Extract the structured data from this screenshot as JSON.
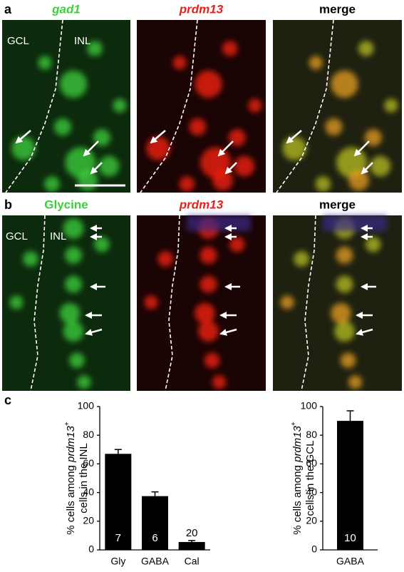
{
  "panels": [
    {
      "letter": "a",
      "titles": [
        "gad1",
        "prdm13",
        "merge"
      ],
      "regions": [
        "GCL",
        "INL"
      ]
    },
    {
      "letter": "b",
      "titles": [
        "Glycine",
        "prdm13",
        "merge"
      ],
      "regions": [
        "GCL",
        "INL"
      ]
    }
  ],
  "chart_data": [
    {
      "type": "bar",
      "letter": "c",
      "ylabel_parts": [
        "% cells among",
        "prdm13",
        "+",
        "cells in the INL"
      ],
      "categories": [
        "Gly",
        "GABA",
        "Cal"
      ],
      "values": [
        67,
        37.5,
        5.5
      ],
      "errors": [
        3,
        3,
        1
      ],
      "n_labels": [
        "7",
        "6",
        "20"
      ],
      "color": "#000000",
      "ylim": [
        0,
        100
      ],
      "yticks": [
        0,
        20,
        40,
        60,
        80,
        100
      ]
    },
    {
      "type": "bar",
      "ylabel_parts": [
        "% cells among",
        "prdm13",
        "+",
        "cells in the GCL"
      ],
      "categories": [
        "GABA"
      ],
      "values": [
        90
      ],
      "errors": [
        7
      ],
      "n_labels": [
        "10"
      ],
      "color": "#000000",
      "ylim": [
        0,
        100
      ],
      "yticks": [
        0,
        20,
        40,
        60,
        80,
        100
      ]
    }
  ]
}
